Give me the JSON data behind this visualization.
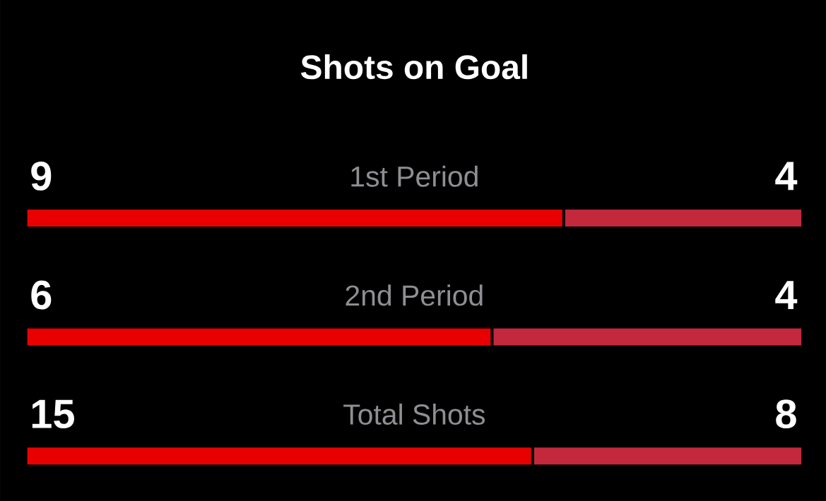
{
  "chart_data": [
    {
      "type": "bar",
      "title": "Shots on Goal",
      "categories": [
        "1st Period"
      ],
      "orientation": "horizontal",
      "stacked": true,
      "data_labels": true,
      "series": [
        {
          "color": "#e80000",
          "values": [
            9
          ]
        },
        {
          "color": "#c4283c",
          "values": [
            4
          ]
        }
      ]
    },
    {
      "type": "bar",
      "categories": [
        "2nd Period"
      ],
      "orientation": "horizontal",
      "stacked": true,
      "data_labels": true,
      "series": [
        {
          "color": "#e80000",
          "values": [
            6
          ]
        },
        {
          "color": "#c4283c",
          "values": [
            4
          ]
        }
      ]
    },
    {
      "type": "bar",
      "categories": [
        "Total Shots"
      ],
      "orientation": "horizontal",
      "stacked": true,
      "data_labels": true,
      "series": [
        {
          "color": "#e80000",
          "values": [
            15
          ]
        },
        {
          "color": "#c4283c",
          "values": [
            8
          ]
        }
      ]
    }
  ]
}
